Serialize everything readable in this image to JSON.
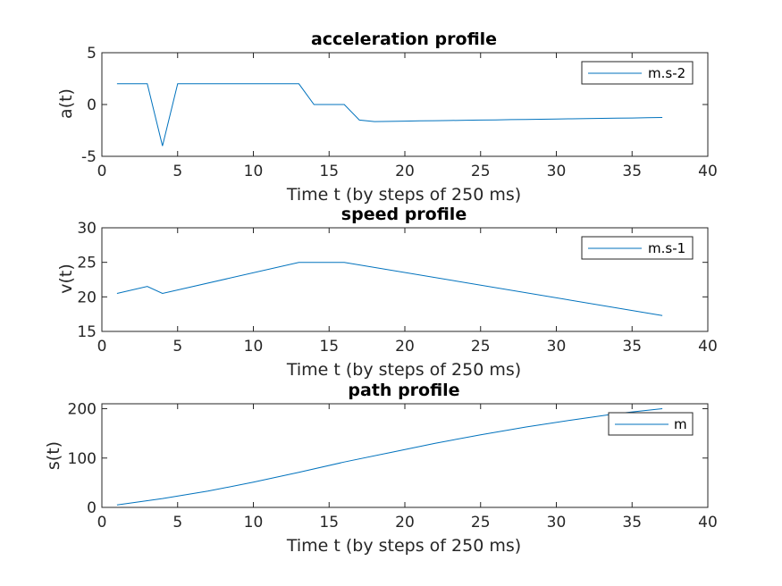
{
  "chart_data": [
    {
      "type": "line",
      "title": "acceleration profile",
      "xlabel": "Time t (by steps of 250 ms)",
      "ylabel": "a(t)",
      "xlim": [
        0,
        40
      ],
      "ylim": [
        -5,
        5
      ],
      "xticks": [
        "0",
        "5",
        "10",
        "15",
        "20",
        "25",
        "30",
        "35",
        "40"
      ],
      "yticks": [
        "-5",
        "0",
        "5"
      ],
      "grid": false,
      "legend_position": "top-right",
      "color": "#0072BD",
      "series": [
        {
          "name": "m.s-2",
          "x": [
            1,
            2,
            3,
            4,
            5,
            6,
            7,
            8,
            9,
            10,
            11,
            12,
            13,
            14,
            15,
            16,
            17,
            18,
            19,
            20,
            21,
            22,
            23,
            24,
            25,
            26,
            27,
            28,
            29,
            30,
            31,
            32,
            33,
            34,
            35,
            36,
            37
          ],
          "y": [
            2,
            2,
            2,
            -4,
            2,
            2,
            2,
            2,
            2,
            2,
            2,
            2,
            2,
            0,
            0,
            0,
            -1.5,
            -1.65,
            -1.63,
            -1.6,
            -1.58,
            -1.56,
            -1.54,
            -1.52,
            -1.5,
            -1.48,
            -1.46,
            -1.44,
            -1.42,
            -1.4,
            -1.38,
            -1.36,
            -1.34,
            -1.32,
            -1.3,
            -1.28,
            -1.25
          ]
        }
      ]
    },
    {
      "type": "line",
      "title": "speed profile",
      "xlabel": "Time t (by steps of 250 ms)",
      "ylabel": "v(t)",
      "xlim": [
        0,
        40
      ],
      "ylim": [
        15,
        30
      ],
      "xticks": [
        "0",
        "5",
        "10",
        "15",
        "20",
        "25",
        "30",
        "35",
        "40"
      ],
      "yticks": [
        "15",
        "20",
        "25",
        "30"
      ],
      "grid": false,
      "legend_position": "top-right",
      "color": "#0072BD",
      "series": [
        {
          "name": "m.s-1",
          "x": [
            1,
            3,
            4,
            13,
            16,
            37
          ],
          "y": [
            20.5,
            21.5,
            20.5,
            25,
            25,
            17.3
          ]
        }
      ]
    },
    {
      "type": "line",
      "title": "path profile",
      "xlabel": "Time t (by steps of 250 ms)",
      "ylabel": "s(t)",
      "xlim": [
        0,
        40
      ],
      "ylim": [
        0,
        210
      ],
      "xticks": [
        "0",
        "5",
        "10",
        "15",
        "20",
        "25",
        "30",
        "35",
        "40"
      ],
      "yticks": [
        "0",
        "100",
        "200"
      ],
      "grid": false,
      "legend_position": "top-right",
      "color": "#0072BD",
      "series": [
        {
          "name": "m",
          "x": [
            1,
            4,
            7,
            10,
            13,
            16,
            19,
            22,
            25,
            28,
            31,
            34,
            37
          ],
          "y": [
            5,
            18,
            33,
            51,
            71,
            92,
            111,
            130,
            147,
            163,
            177,
            190,
            200
          ]
        }
      ]
    }
  ]
}
